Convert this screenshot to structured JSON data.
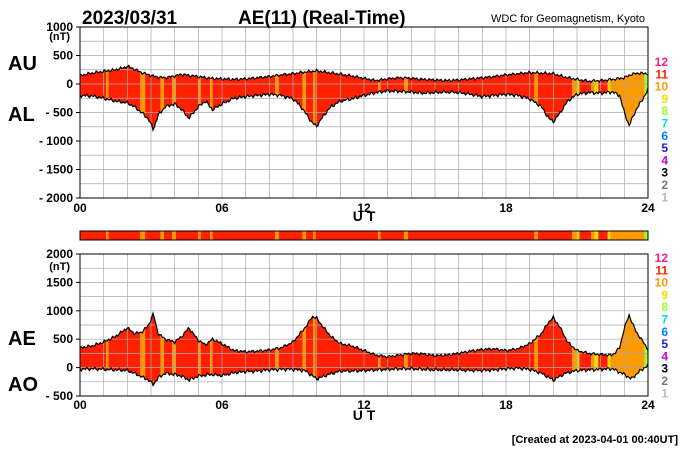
{
  "header": {
    "date": "2023/03/31",
    "title": "AE(11) (Real-Time)",
    "source": "WDC for Geomagnetism, Kyoto"
  },
  "footer": {
    "created": "[Created at 2023-04-01 00:40UT]"
  },
  "colors": {
    "stations": {
      "12": "#ff1a8c",
      "11": "#ff2000",
      "10": "#ff9900",
      "9": "#f0e000",
      "8": "#99ff33",
      "7": "#00e0e0",
      "6": "#0080ff",
      "5": "#2020cc",
      "4": "#cc00cc",
      "3": "#000000",
      "2": "#777777",
      "1": "#bbbbbb"
    },
    "grid": "#aaaaaa"
  },
  "chart_data": [
    {
      "type": "area",
      "name": "AU/AL",
      "side_labels": [
        "AU",
        "AL"
      ],
      "unit": "(nT)",
      "ylim": [
        -2000,
        1000
      ],
      "ytick_values": [
        1000,
        500,
        0,
        -500,
        -1000,
        -1500,
        -2000
      ],
      "ytick_labels": [
        "1000",
        "500",
        "0",
        "- 500",
        "- 1000",
        "- 1500",
        "- 2000"
      ],
      "xlim": [
        0,
        24
      ],
      "xtick_values": [
        0,
        6,
        12,
        18,
        24
      ],
      "xtick_labels": [
        "00",
        "06",
        "12",
        "18",
        "24"
      ],
      "xlabel": "U T",
      "legend": [
        "12",
        "11",
        "10",
        "9",
        "8",
        "7",
        "6",
        "5",
        "4",
        "3",
        "2",
        "1"
      ],
      "series": [
        {
          "name": "AU",
          "x": [
            0,
            0.5,
            1,
            1.5,
            1.8,
            2,
            2.3,
            2.6,
            3,
            3.3,
            3.6,
            4,
            4.3,
            4.6,
            5,
            5.5,
            6,
            6.5,
            7,
            7.5,
            8,
            8.5,
            9,
            9.5,
            10,
            10.5,
            11,
            11.5,
            12,
            12.5,
            13,
            13.5,
            14,
            14.5,
            15,
            15.5,
            16,
            16.5,
            17,
            17.5,
            18,
            18.5,
            19,
            19.5,
            20,
            20.5,
            21,
            21.5,
            22,
            22.5,
            23,
            23.3,
            23.6,
            24
          ],
          "values": [
            150,
            190,
            220,
            250,
            280,
            310,
            260,
            200,
            150,
            120,
            110,
            140,
            170,
            150,
            130,
            100,
            90,
            80,
            90,
            110,
            130,
            160,
            180,
            210,
            230,
            200,
            170,
            140,
            100,
            60,
            90,
            110,
            100,
            80,
            70,
            60,
            70,
            90,
            110,
            130,
            160,
            180,
            200,
            190,
            180,
            120,
            80,
            50,
            60,
            80,
            110,
            170,
            190,
            180
          ]
        },
        {
          "name": "AL",
          "x": [
            0,
            0.5,
            1,
            1.5,
            2,
            2.3,
            2.6,
            2.9,
            3.1,
            3.3,
            3.6,
            4,
            4.3,
            4.6,
            5,
            5.3,
            5.6,
            6,
            6.5,
            7,
            7.5,
            8,
            8.5,
            9,
            9.3,
            9.6,
            9.8,
            10,
            10.3,
            10.6,
            11,
            11.5,
            12,
            12.5,
            13,
            13.5,
            14,
            14.5,
            15,
            15.5,
            16,
            16.5,
            17,
            17.5,
            18,
            18.5,
            19,
            19.5,
            19.8,
            20,
            20.3,
            20.6,
            21,
            21.5,
            22,
            22.5,
            22.8,
            23,
            23.2,
            23.5,
            23.8,
            24
          ],
          "values": [
            -200,
            -210,
            -250,
            -300,
            -330,
            -400,
            -500,
            -620,
            -800,
            -550,
            -400,
            -350,
            -450,
            -600,
            -400,
            -300,
            -450,
            -350,
            -250,
            -220,
            -200,
            -180,
            -200,
            -260,
            -380,
            -550,
            -680,
            -740,
            -550,
            -400,
            -300,
            -260,
            -200,
            -150,
            -120,
            -130,
            -140,
            -160,
            -150,
            -140,
            -150,
            -180,
            -220,
            -200,
            -180,
            -200,
            -260,
            -400,
            -600,
            -660,
            -500,
            -300,
            -180,
            -150,
            -160,
            -140,
            -200,
            -500,
            -730,
            -450,
            -250,
            -100
          ]
        }
      ],
      "station_bar": [
        {
          "from": 0,
          "to": 1.1,
          "n": "11"
        },
        {
          "from": 1.1,
          "to": 1.2,
          "n": "10"
        },
        {
          "from": 1.2,
          "to": 2.55,
          "n": "11"
        },
        {
          "from": 2.55,
          "to": 2.75,
          "n": "10"
        },
        {
          "from": 2.75,
          "to": 3.4,
          "n": "11"
        },
        {
          "from": 3.4,
          "to": 3.55,
          "n": "10"
        },
        {
          "from": 3.55,
          "to": 3.9,
          "n": "11"
        },
        {
          "from": 3.9,
          "to": 4.05,
          "n": "10"
        },
        {
          "from": 4.05,
          "to": 5.0,
          "n": "11"
        },
        {
          "from": 5.0,
          "to": 5.1,
          "n": "10"
        },
        {
          "from": 5.1,
          "to": 5.5,
          "n": "11"
        },
        {
          "from": 5.5,
          "to": 5.6,
          "n": "10"
        },
        {
          "from": 5.6,
          "to": 8.25,
          "n": "11"
        },
        {
          "from": 8.25,
          "to": 8.4,
          "n": "10"
        },
        {
          "from": 8.4,
          "to": 9.4,
          "n": "11"
        },
        {
          "from": 9.4,
          "to": 9.55,
          "n": "10"
        },
        {
          "from": 9.55,
          "to": 9.85,
          "n": "11"
        },
        {
          "from": 9.85,
          "to": 9.95,
          "n": "10"
        },
        {
          "from": 9.95,
          "to": 12.6,
          "n": "11"
        },
        {
          "from": 12.6,
          "to": 12.7,
          "n": "10"
        },
        {
          "from": 12.7,
          "to": 13.7,
          "n": "11"
        },
        {
          "from": 13.7,
          "to": 13.85,
          "n": "10"
        },
        {
          "from": 13.85,
          "to": 19.2,
          "n": "11"
        },
        {
          "from": 19.2,
          "to": 19.35,
          "n": "10"
        },
        {
          "from": 19.35,
          "to": 20.8,
          "n": "11"
        },
        {
          "from": 20.8,
          "to": 21.0,
          "n": "10"
        },
        {
          "from": 21.0,
          "to": 21.1,
          "n": "9"
        },
        {
          "from": 21.1,
          "to": 21.6,
          "n": "11"
        },
        {
          "from": 21.6,
          "to": 21.75,
          "n": "10"
        },
        {
          "from": 21.75,
          "to": 21.9,
          "n": "9"
        },
        {
          "from": 21.9,
          "to": 22.3,
          "n": "11"
        },
        {
          "from": 22.3,
          "to": 22.4,
          "n": "9"
        },
        {
          "from": 22.4,
          "to": 23.85,
          "n": "10"
        },
        {
          "from": 23.85,
          "to": 24,
          "n": "8"
        }
      ]
    },
    {
      "type": "area",
      "name": "AE/AO",
      "side_labels": [
        "AE",
        "AO"
      ],
      "unit": "(nT)",
      "ylim": [
        -500,
        2000
      ],
      "ytick_values": [
        2000,
        1500,
        1000,
        500,
        0,
        -500
      ],
      "ytick_labels": [
        "2000",
        "1500",
        "1000",
        "500",
        "0",
        "- 500"
      ],
      "xlim": [
        0,
        24
      ],
      "xtick_values": [
        0,
        6,
        12,
        18,
        24
      ],
      "xtick_labels": [
        "00",
        "06",
        "12",
        "18",
        "24"
      ],
      "xlabel": "U T",
      "legend": [
        "12",
        "11",
        "10",
        "9",
        "8",
        "7",
        "6",
        "5",
        "4",
        "3",
        "2",
        "1"
      ],
      "series": [
        {
          "name": "AE",
          "x": [
            0,
            0.5,
            1,
            1.5,
            2,
            2.3,
            2.6,
            2.9,
            3.1,
            3.3,
            3.6,
            4,
            4.3,
            4.6,
            5,
            5.3,
            5.6,
            6,
            6.5,
            7,
            7.5,
            8,
            8.5,
            9,
            9.3,
            9.6,
            9.8,
            10,
            10.3,
            10.6,
            11,
            11.5,
            12,
            12.5,
            13,
            13.5,
            14,
            14.5,
            15,
            15.5,
            16,
            16.5,
            17,
            17.5,
            18,
            18.5,
            19,
            19.5,
            19.8,
            20,
            20.3,
            20.6,
            21,
            21.5,
            22,
            22.5,
            22.8,
            23,
            23.2,
            23.5,
            23.8,
            24
          ],
          "values": [
            350,
            380,
            450,
            550,
            700,
            600,
            620,
            750,
            950,
            600,
            500,
            450,
            550,
            700,
            480,
            400,
            500,
            420,
            300,
            280,
            290,
            310,
            350,
            450,
            600,
            750,
            900,
            870,
            700,
            550,
            420,
            380,
            300,
            220,
            190,
            220,
            250,
            240,
            210,
            220,
            250,
            290,
            320,
            330,
            300,
            330,
            420,
            600,
            800,
            880,
            700,
            450,
            300,
            250,
            230,
            220,
            350,
            700,
            920,
            630,
            450,
            320
          ]
        },
        {
          "name": "AO",
          "x": [
            0,
            0.5,
            1,
            1.5,
            2,
            2.3,
            2.6,
            2.9,
            3.1,
            3.3,
            3.6,
            4,
            4.3,
            4.6,
            5,
            5.5,
            6,
            6.5,
            7,
            7.5,
            8,
            8.5,
            9,
            9.5,
            10,
            10.5,
            11,
            11.5,
            12,
            12.5,
            13,
            13.5,
            14,
            14.5,
            15,
            15.5,
            16,
            16.5,
            17,
            17.5,
            18,
            18.5,
            19,
            19.5,
            20,
            20.5,
            21,
            21.5,
            22,
            22.5,
            23,
            23.3,
            23.6,
            24
          ],
          "values": [
            -30,
            -20,
            -30,
            -40,
            -50,
            -100,
            -160,
            -220,
            -300,
            -180,
            -100,
            -120,
            -150,
            -220,
            -150,
            -120,
            -140,
            -90,
            -70,
            -60,
            -40,
            -30,
            -30,
            -50,
            -200,
            -120,
            -60,
            -60,
            -50,
            -40,
            -30,
            -20,
            -20,
            -30,
            -40,
            -40,
            -40,
            -50,
            -50,
            -40,
            -20,
            -10,
            -30,
            -100,
            -220,
            -100,
            -50,
            -40,
            -30,
            -20,
            -120,
            -200,
            -80,
            40
          ]
        }
      ],
      "station_bar": "same as panel 1"
    }
  ]
}
